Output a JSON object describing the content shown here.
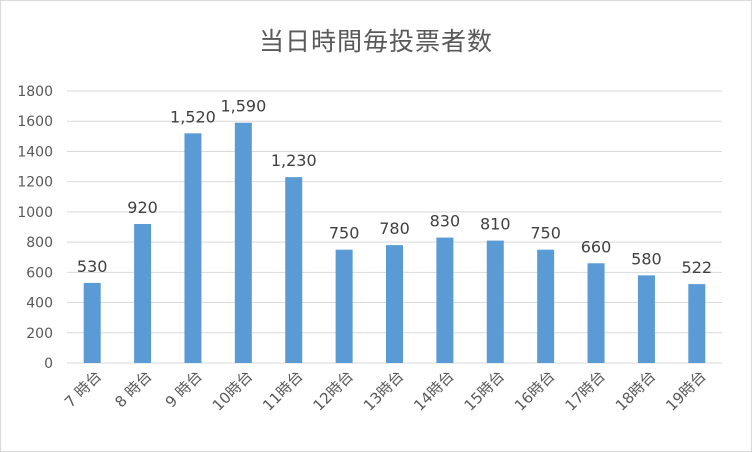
{
  "chart_data": {
    "type": "bar",
    "title": "当日時間毎投票者数",
    "xlabel": "",
    "ylabel": "",
    "categories": [
      "7 時台",
      "8 時台",
      "9 時台",
      "10時台",
      "11時台",
      "12時台",
      "13時台",
      "14時台",
      "15時台",
      "16時台",
      "17時台",
      "18時台",
      "19時台"
    ],
    "values": [
      530,
      920,
      1520,
      1590,
      1230,
      750,
      780,
      830,
      810,
      750,
      660,
      580,
      522
    ],
    "data_labels": [
      "530",
      "920",
      "1,520",
      "1,590",
      "1,230",
      "750",
      "780",
      "830",
      "810",
      "750",
      "660",
      "580",
      "522"
    ],
    "ylim": [
      0,
      1800
    ],
    "yticks": [
      0,
      200,
      400,
      600,
      800,
      1000,
      1200,
      1400,
      1600,
      1800
    ],
    "grid": true,
    "legend": "none",
    "bar_color": "#5b9bd5",
    "grid_color": "#d9d9d9"
  }
}
